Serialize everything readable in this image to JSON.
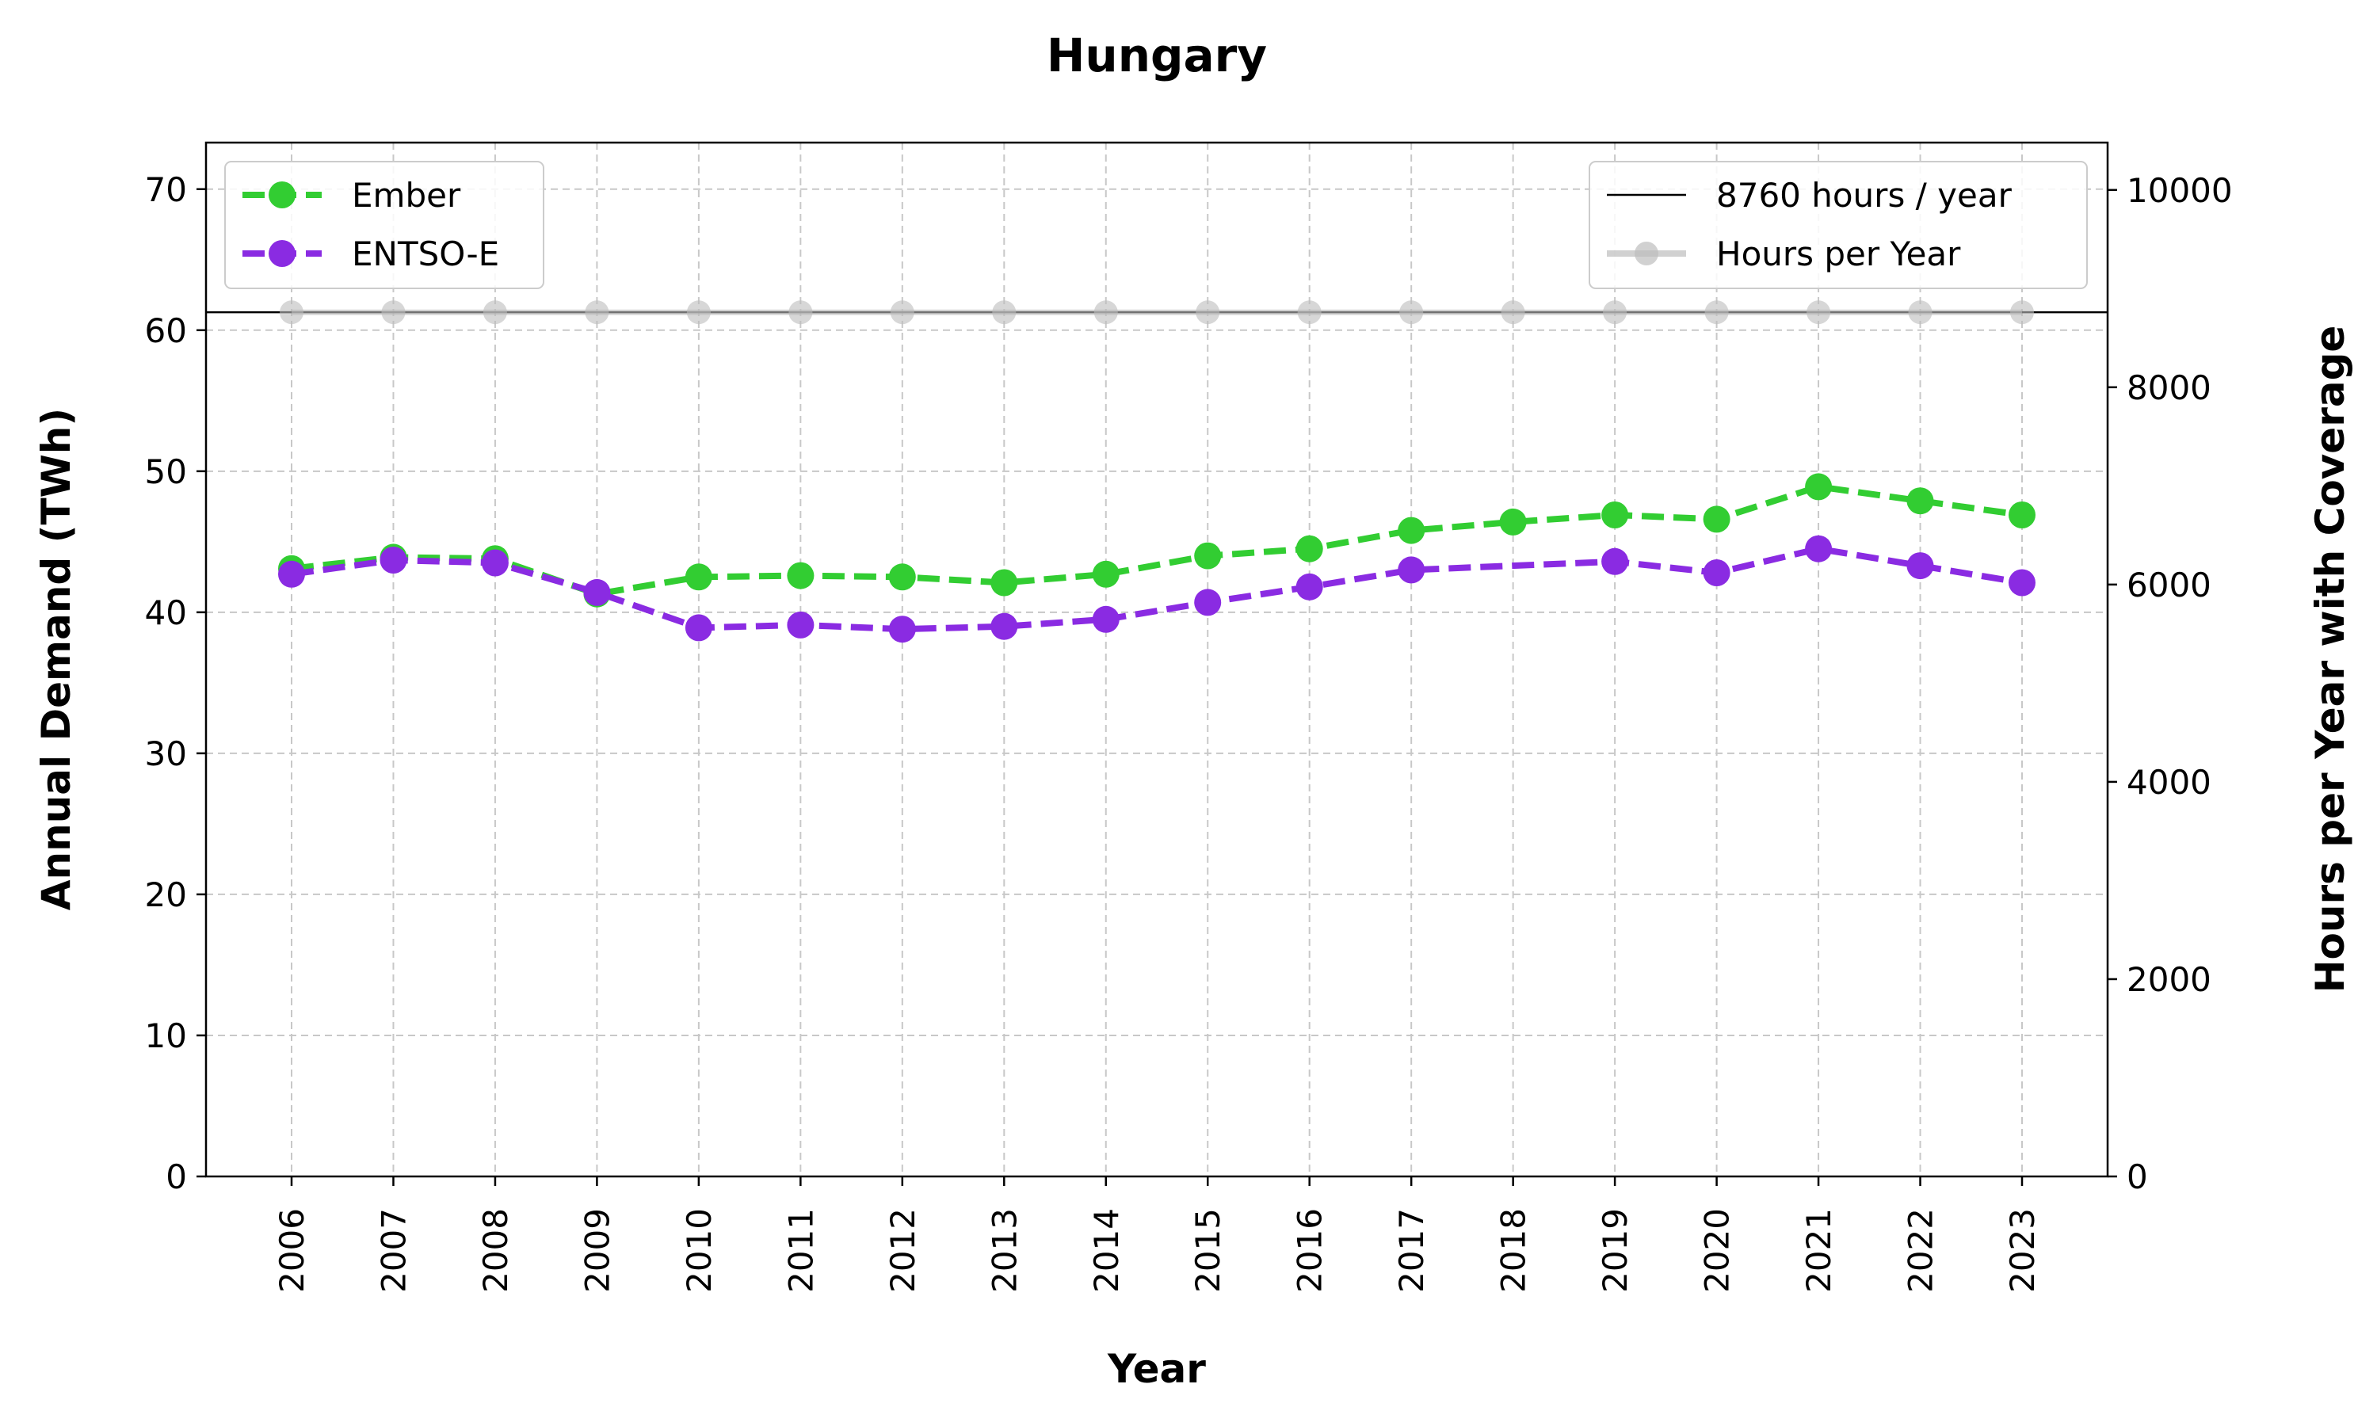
{
  "chart_data": {
    "type": "line",
    "title": "Hungary",
    "xlabel": "Year",
    "ylabel": "Annual Demand (TWh)",
    "y2label": "Hours per Year with Coverage",
    "x": [
      "2006",
      "2007",
      "2008",
      "2009",
      "2010",
      "2011",
      "2012",
      "2013",
      "2014",
      "2015",
      "2016",
      "2017",
      "2018",
      "2019",
      "2020",
      "2021",
      "2022",
      "2023"
    ],
    "ylim": [
      0,
      73.3
    ],
    "y2lim": [
      0,
      10480
    ],
    "yticks": [
      0,
      10,
      20,
      30,
      40,
      50,
      60,
      70
    ],
    "y2ticks": [
      0,
      2000,
      4000,
      6000,
      8000,
      10000
    ],
    "grid": true,
    "series": [
      {
        "name": "Ember",
        "axis": "left",
        "color": "#32cd32",
        "style": "dashed",
        "marker": "circle",
        "values": [
          43.1,
          43.9,
          43.8,
          41.3,
          42.5,
          42.6,
          42.5,
          42.1,
          42.7,
          44.0,
          44.5,
          45.8,
          46.4,
          46.9,
          46.6,
          48.9,
          47.9,
          46.9
        ]
      },
      {
        "name": "ENTSO-E",
        "axis": "left",
        "color": "#8a2be2",
        "style": "dashed",
        "marker": "circle",
        "values": [
          42.7,
          43.7,
          43.5,
          41.4,
          38.9,
          39.1,
          38.8,
          39.0,
          39.5,
          40.7,
          41.8,
          43.0,
          null,
          43.6,
          42.8,
          44.5,
          43.3,
          42.1
        ]
      },
      {
        "name": "Hours per Year",
        "axis": "right",
        "color": "#bdbdbd",
        "style": "solid",
        "marker": "circle",
        "values": [
          8760,
          8760,
          8760,
          8760,
          8760,
          8760,
          8760,
          8760,
          8760,
          8760,
          8760,
          8760,
          8760,
          8760,
          8760,
          8760,
          8760,
          8760
        ]
      }
    ],
    "reference_line": {
      "label": "8760 hours / year",
      "value": 8760,
      "axis": "right",
      "color": "#000000"
    },
    "legend_left": [
      "Ember",
      "ENTSO-E"
    ],
    "legend_right": [
      "8760 hours / year",
      "Hours per Year"
    ]
  }
}
